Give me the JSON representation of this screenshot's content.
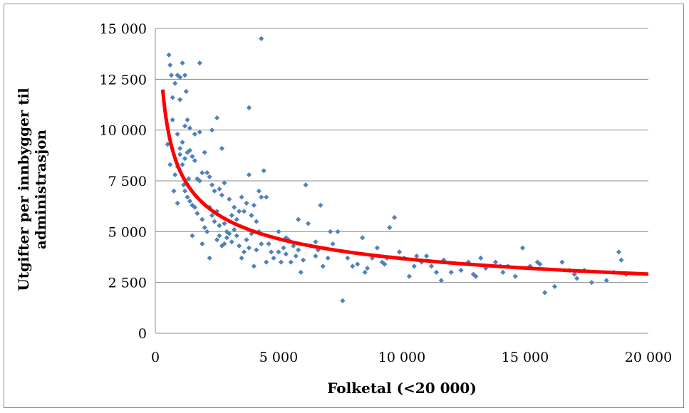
{
  "chart_data": {
    "type": "scatter",
    "title": "",
    "xlabel": "Folketal (<20 000)",
    "ylabel_lines": [
      "Utgifter per innbygger til",
      "administrasjon"
    ],
    "xlim": [
      0,
      20000
    ],
    "ylim": [
      0,
      15000
    ],
    "x_ticks": [
      0,
      5000,
      10000,
      15000,
      20000
    ],
    "x_tick_labels": [
      "0",
      "5 000",
      "10 000",
      "15 000",
      "20 000"
    ],
    "y_ticks": [
      0,
      2500,
      5000,
      7500,
      10000,
      12500,
      15000
    ],
    "y_tick_labels": [
      "0",
      "2 500",
      "5 000",
      "7 500",
      "10 000",
      "12 500",
      "15 000"
    ],
    "grid": "horizontal",
    "legend": "none",
    "colors": {
      "points": "#4f81bd",
      "trend": "#ff0000",
      "grid": "#8c8c8c"
    },
    "trendline": {
      "type": "power",
      "coefficient": 82000,
      "exponent": -0.337,
      "x_from": 300,
      "x_to": 20000
    },
    "points": [
      [
        550,
        13700
      ],
      [
        600,
        13200
      ],
      [
        700,
        11600
      ],
      [
        650,
        12700
      ],
      [
        800,
        12300
      ],
      [
        900,
        12700
      ],
      [
        1000,
        12600
      ],
      [
        1100,
        13300
      ],
      [
        1200,
        12700
      ],
      [
        1250,
        11900
      ],
      [
        1800,
        13300
      ],
      [
        3800,
        11100
      ],
      [
        4300,
        14500
      ],
      [
        700,
        10500
      ],
      [
        900,
        9800
      ],
      [
        1100,
        9400
      ],
      [
        1200,
        10200
      ],
      [
        1300,
        10500
      ],
      [
        1400,
        10100
      ],
      [
        1600,
        9800
      ],
      [
        1800,
        9900
      ],
      [
        2300,
        10000
      ],
      [
        2500,
        10600
      ],
      [
        2700,
        9100
      ],
      [
        1000,
        11500
      ],
      [
        500,
        9300
      ],
      [
        800,
        7800
      ],
      [
        900,
        8200
      ],
      [
        1000,
        8800
      ],
      [
        1100,
        8300
      ],
      [
        1200,
        8600
      ],
      [
        1300,
        8900
      ],
      [
        1400,
        9000
      ],
      [
        1500,
        8700
      ],
      [
        1600,
        8500
      ],
      [
        1700,
        7600
      ],
      [
        1800,
        7500
      ],
      [
        1900,
        7900
      ],
      [
        2000,
        8900
      ],
      [
        2100,
        7900
      ],
      [
        2200,
        7700
      ],
      [
        2300,
        7300
      ],
      [
        2400,
        7000
      ],
      [
        2600,
        7100
      ],
      [
        2700,
        6800
      ],
      [
        2800,
        7400
      ],
      [
        1200,
        7000
      ],
      [
        1300,
        6700
      ],
      [
        1400,
        6500
      ],
      [
        1500,
        6300
      ],
      [
        1600,
        6200
      ],
      [
        1700,
        5900
      ],
      [
        1900,
        5600
      ],
      [
        2000,
        5200
      ],
      [
        2100,
        5000
      ],
      [
        2200,
        6200
      ],
      [
        2300,
        5800
      ],
      [
        2400,
        5500
      ],
      [
        2500,
        6000
      ],
      [
        2600,
        5300
      ],
      [
        2800,
        5400
      ],
      [
        2900,
        5000
      ],
      [
        3000,
        6600
      ],
      [
        3100,
        5800
      ],
      [
        3200,
        6200
      ],
      [
        3300,
        5600
      ],
      [
        3400,
        6000
      ],
      [
        3500,
        6700
      ],
      [
        3600,
        6000
      ],
      [
        3700,
        6400
      ],
      [
        3800,
        7800
      ],
      [
        3900,
        5800
      ],
      [
        4000,
        6300
      ],
      [
        4100,
        5500
      ],
      [
        4200,
        7000
      ],
      [
        4400,
        8000
      ],
      [
        4300,
        6700
      ],
      [
        4500,
        6700
      ],
      [
        2500,
        4600
      ],
      [
        2600,
        4800
      ],
      [
        2700,
        4300
      ],
      [
        2800,
        4400
      ],
      [
        2900,
        4700
      ],
      [
        3000,
        4900
      ],
      [
        3100,
        4500
      ],
      [
        3200,
        5100
      ],
      [
        3300,
        4800
      ],
      [
        3400,
        4300
      ],
      [
        3500,
        3700
      ],
      [
        3600,
        4000
      ],
      [
        3700,
        4600
      ],
      [
        3800,
        4200
      ],
      [
        3900,
        4900
      ],
      [
        4000,
        3300
      ],
      [
        4100,
        4100
      ],
      [
        4200,
        5000
      ],
      [
        4300,
        4400
      ],
      [
        4500,
        3500
      ],
      [
        4600,
        4400
      ],
      [
        4700,
        4000
      ],
      [
        4800,
        3700
      ],
      [
        5000,
        4000
      ],
      [
        5100,
        3500
      ],
      [
        5200,
        4200
      ],
      [
        5300,
        3900
      ],
      [
        5400,
        4600
      ],
      [
        5500,
        3500
      ],
      [
        5600,
        4300
      ],
      [
        5700,
        3800
      ],
      [
        5800,
        4100
      ],
      [
        5900,
        3000
      ],
      [
        6000,
        3600
      ],
      [
        6100,
        7300
      ],
      [
        6200,
        5400
      ],
      [
        6300,
        4300
      ],
      [
        6500,
        3800
      ],
      [
        6600,
        4100
      ],
      [
        6700,
        6300
      ],
      [
        6800,
        3300
      ],
      [
        7000,
        3700
      ],
      [
        7200,
        4400
      ],
      [
        7400,
        5000
      ],
      [
        7600,
        1600
      ],
      [
        7800,
        3700
      ],
      [
        8000,
        3300
      ],
      [
        8200,
        3400
      ],
      [
        8400,
        4700
      ],
      [
        8600,
        3200
      ],
      [
        8800,
        3700
      ],
      [
        9000,
        4200
      ],
      [
        9200,
        3500
      ],
      [
        9400,
        3700
      ],
      [
        9500,
        5200
      ],
      [
        9700,
        5700
      ],
      [
        9900,
        4000
      ],
      [
        10100,
        3700
      ],
      [
        10300,
        2800
      ],
      [
        10500,
        3300
      ],
      [
        10800,
        3500
      ],
      [
        11000,
        3800
      ],
      [
        11200,
        3300
      ],
      [
        11400,
        3000
      ],
      [
        11600,
        2600
      ],
      [
        12000,
        3000
      ],
      [
        12400,
        3100
      ],
      [
        12700,
        3500
      ],
      [
        13000,
        2800
      ],
      [
        13200,
        3700
      ],
      [
        13400,
        3200
      ],
      [
        13800,
        3500
      ],
      [
        14100,
        3000
      ],
      [
        14300,
        3300
      ],
      [
        14600,
        2800
      ],
      [
        14900,
        4200
      ],
      [
        15200,
        3300
      ],
      [
        15500,
        3500
      ],
      [
        15800,
        2000
      ],
      [
        16200,
        2300
      ],
      [
        16500,
        3500
      ],
      [
        16800,
        3100
      ],
      [
        17100,
        2700
      ],
      [
        17400,
        3100
      ],
      [
        17700,
        2500
      ],
      [
        18300,
        2600
      ],
      [
        18600,
        3000
      ],
      [
        18800,
        4000
      ],
      [
        18900,
        3600
      ],
      [
        19100,
        2900
      ],
      [
        1500,
        4800
      ],
      [
        1900,
        4400
      ],
      [
        2200,
        3700
      ],
      [
        900,
        6400
      ],
      [
        1000,
        9100
      ],
      [
        1150,
        7300
      ],
      [
        1350,
        7600
      ],
      [
        600,
        8300
      ],
      [
        750,
        7000
      ],
      [
        5000,
        5000
      ],
      [
        5300,
        4700
      ],
      [
        5800,
        5600
      ],
      [
        6500,
        4500
      ],
      [
        7100,
        5000
      ],
      [
        8500,
        3000
      ],
      [
        9300,
        3400
      ],
      [
        10600,
        3800
      ],
      [
        11700,
        3600
      ],
      [
        12900,
        2900
      ],
      [
        14000,
        3300
      ],
      [
        15600,
        3400
      ],
      [
        17000,
        2900
      ]
    ]
  }
}
